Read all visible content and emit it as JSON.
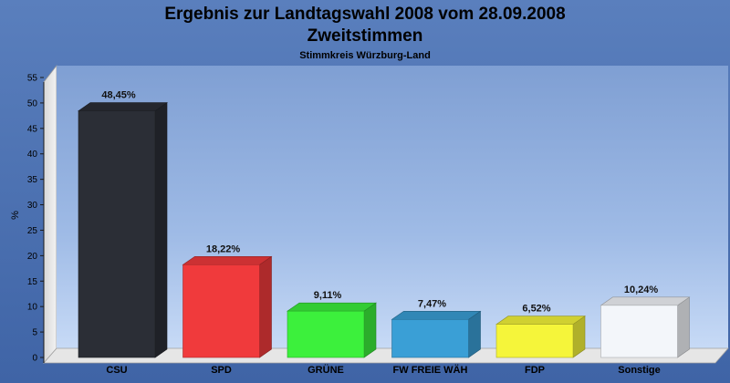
{
  "chart_data": {
    "type": "bar",
    "title": "Ergebnis zur Landtagswahl 2008 vom 28.09.2008",
    "title_line2": "Zweitstimmen",
    "subtitle": "Stimmkreis Würzburg-Land",
    "ylabel": "%",
    "xlabel": "",
    "ylim": [
      0,
      55
    ],
    "yticks": [
      "0",
      "5",
      "10",
      "15",
      "20",
      "25",
      "30",
      "35",
      "40",
      "45",
      "50",
      "55"
    ],
    "grid": false,
    "categories": [
      "CSU",
      "SPD",
      "GRÜNE",
      "FW FREIE WÄH",
      "FDP",
      "Sonstige"
    ],
    "values": [
      48.45,
      18.22,
      9.11,
      7.47,
      6.52,
      10.24
    ],
    "data_labels": [
      "48,45%",
      "18,22%",
      "9,11%",
      "7,47%",
      "6,52%",
      "10,24%"
    ],
    "colors": [
      "#2b2e36",
      "#f03a3c",
      "#3cf03c",
      "#3a9fd6",
      "#f5f53a",
      "#f3f6fa"
    ]
  }
}
